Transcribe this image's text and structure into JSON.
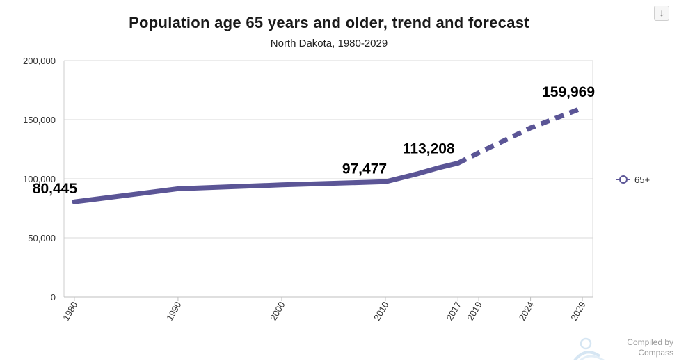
{
  "chart_data": {
    "type": "line",
    "title": "Population age 65 years and older, trend and forecast",
    "subtitle": "North Dakota, 1980-2029",
    "xlabel": "",
    "ylabel": "",
    "x_ticks": [
      "1980",
      "1990",
      "2000",
      "2010",
      "2017",
      "2019",
      "2024",
      "2029"
    ],
    "y_ticks": [
      "0",
      "50,000",
      "100,000",
      "150,000",
      "200,000"
    ],
    "ylim": [
      0,
      200000
    ],
    "xlim": [
      1979,
      2030
    ],
    "grid": true,
    "legend_position": "right",
    "series": [
      {
        "name": "65+",
        "color": "#5b5596",
        "points": [
          {
            "x": 1980,
            "y": 80445
          },
          {
            "x": 1990,
            "y": 91500
          },
          {
            "x": 2000,
            "y": 94800
          },
          {
            "x": 2010,
            "y": 97477
          },
          {
            "x": 2013,
            "y": 104000
          },
          {
            "x": 2015,
            "y": 109000
          },
          {
            "x": 2017,
            "y": 113208
          },
          {
            "x": 2019,
            "y": 122000
          },
          {
            "x": 2024,
            "y": 143000
          },
          {
            "x": 2029,
            "y": 159969
          }
        ],
        "forecast_from": 2017
      }
    ],
    "annotations": [
      {
        "x": 1980,
        "y": 80445,
        "label": "80,445"
      },
      {
        "x": 2010,
        "y": 97477,
        "label": "97,477"
      },
      {
        "x": 2017,
        "y": 113208,
        "label": "113,208"
      },
      {
        "x": 2029,
        "y": 159969,
        "label": "159,969"
      }
    ]
  },
  "credit": {
    "line1": "Compiled by",
    "line2": "Compass"
  },
  "toolbar": {
    "download_icon": "download-icon"
  }
}
